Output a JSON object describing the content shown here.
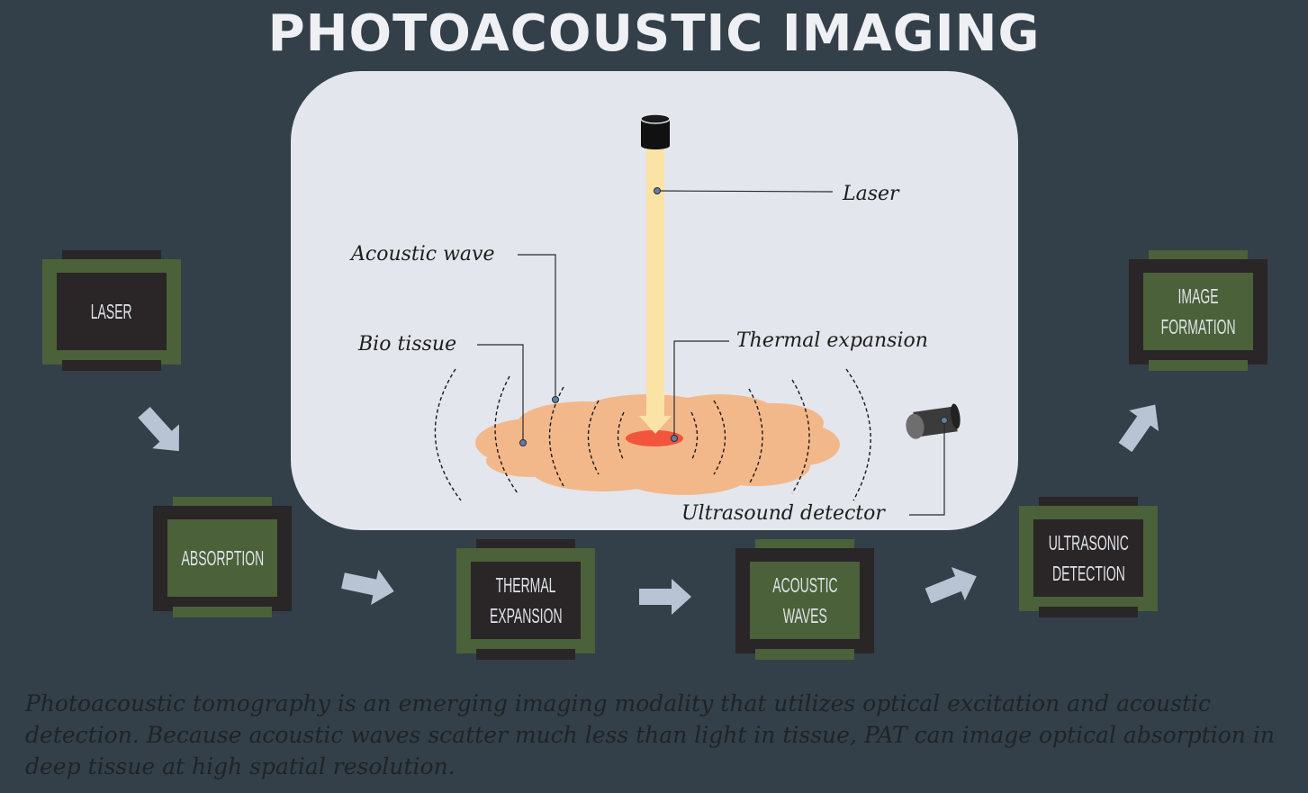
{
  "title": "PHOTOACOUSTIC IMAGING",
  "labels": {
    "laser": "Laser",
    "acoustic_wave": "Acoustic wave",
    "bio_tissue": "Bio tissue",
    "thermal_expansion": "Thermal expansion",
    "ultrasound_detector": "Ultrasound detector"
  },
  "steps": [
    {
      "line1": "LASER",
      "line2": ""
    },
    {
      "line1": "ABSORPTION",
      "line2": ""
    },
    {
      "line1": "THERMAL",
      "line2": "EXPANSION"
    },
    {
      "line1": "ACOUSTIC",
      "line2": "WAVES"
    },
    {
      "line1": "ULTRASONIC",
      "line2": "DETECTION"
    },
    {
      "line1": "IMAGE",
      "line2": "FORMATION"
    }
  ],
  "description": "Photoacoustic tomography is an emerging imaging modality that utilizes optical excitation and acoustic detection. Because acoustic waves scatter much less than light in tissue, PAT can image optical absorption in deep tissue at high spatial resolution.",
  "colors": {
    "background": "#334049",
    "panel": "#e3e6ec",
    "step_green": "#4a6139",
    "step_dark": "#2a2527",
    "tissue": "#f3b88a",
    "laser_beam": "#fbe3a6",
    "hotspot": "#f2553c",
    "arrow": "#b8c4d4"
  }
}
